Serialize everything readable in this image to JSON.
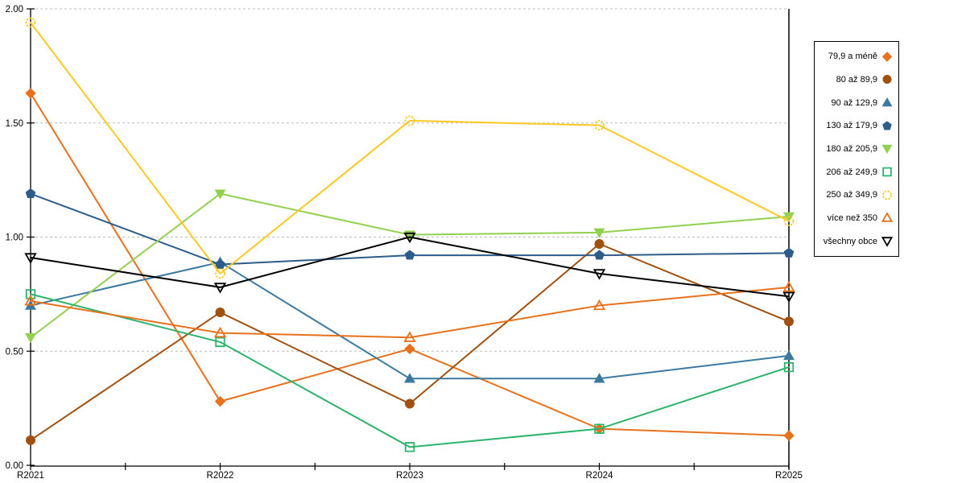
{
  "chart_data": {
    "type": "line",
    "title": "",
    "xlabel": "",
    "ylabel": "",
    "x_categories": [
      "R2021",
      "R2022",
      "R2023",
      "R2024",
      "R2025"
    ],
    "y_tick_labels": [
      "0.00",
      "0.50",
      "1.00",
      "1.50",
      "2.00"
    ],
    "ylim": [
      0,
      2
    ],
    "grid": "horizontal-dashed",
    "legend_position": "right",
    "colors": {
      "gridline": "#BDBDBD",
      "axis": "#000000"
    },
    "series": [
      {
        "name": "79,9 a méně",
        "color": "#E8711C",
        "marker": "diamond",
        "fill": "solid",
        "values": [
          1.63,
          0.28,
          0.51,
          0.16,
          0.13
        ]
      },
      {
        "name": "80 až 89,9",
        "color": "#A0500F",
        "marker": "circle",
        "fill": "solid",
        "values": [
          0.11,
          0.67,
          0.27,
          0.97,
          0.63
        ]
      },
      {
        "name": "90 až 129,9",
        "color": "#3B7A9E",
        "marker": "triangle-up",
        "fill": "solid",
        "values": [
          0.7,
          0.89,
          0.38,
          0.38,
          0.48
        ]
      },
      {
        "name": "130 až 179,9",
        "color": "#2E5C8A",
        "marker": "pentagon",
        "fill": "solid",
        "values": [
          1.19,
          0.88,
          0.92,
          0.92,
          0.93
        ]
      },
      {
        "name": "180 až 205,9",
        "color": "#92D050",
        "marker": "triangle-down",
        "fill": "solid",
        "values": [
          0.56,
          1.19,
          1.01,
          1.02,
          1.09
        ]
      },
      {
        "name": "206 až 249,9",
        "color": "#2DB36B",
        "marker": "square",
        "fill": "hollow",
        "values": [
          0.75,
          0.54,
          0.08,
          0.16,
          0.43
        ]
      },
      {
        "name": "250 až 349,9",
        "color": "#FFC821",
        "marker": "circle",
        "fill": "hollow",
        "dashed_marker": true,
        "values": [
          1.94,
          0.84,
          1.51,
          1.49,
          1.07
        ]
      },
      {
        "name": "více než 350",
        "color": "#E8711C",
        "marker": "triangle-up",
        "fill": "hollow",
        "values": [
          0.72,
          0.58,
          0.56,
          0.7,
          0.78
        ]
      },
      {
        "name": "všechny obce",
        "color": "#000000",
        "marker": "triangle-down",
        "fill": "hollow",
        "values": [
          0.91,
          0.78,
          1.0,
          0.84,
          0.74
        ]
      }
    ]
  }
}
